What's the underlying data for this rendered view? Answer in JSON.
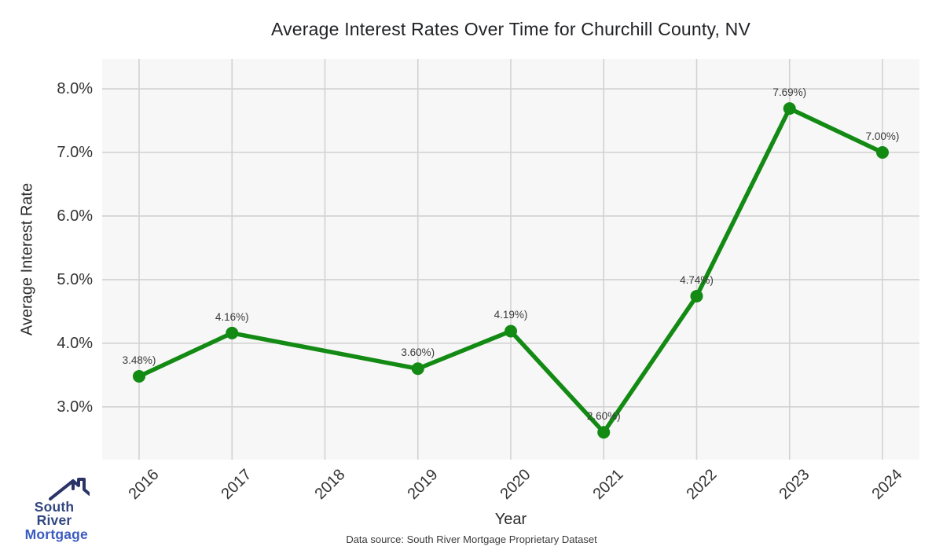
{
  "chart_data": {
    "type": "line",
    "title": "Average Interest Rates Over Time for Churchill County, NV",
    "x": [
      "2016",
      "2017",
      "2018",
      "2019",
      "2020",
      "2021",
      "2022",
      "2023",
      "2024"
    ],
    "series": [
      {
        "name": "Average Interest Rate",
        "values": [
          3.48,
          4.16,
          null,
          3.6,
          4.19,
          2.6,
          4.74,
          7.69,
          7.0
        ]
      }
    ],
    "point_labels": [
      "3.48%)",
      "4.16%)",
      "",
      "3.60%)",
      "4.19%)",
      "2.60%)",
      "4.74%)",
      "7.69%)",
      "7.00%)"
    ],
    "xlabel": "Year",
    "ylabel": "Average Interest Rate",
    "ylim": [
      2.17,
      8.47
    ],
    "yticks": [
      {
        "value": 8.0,
        "label": "8.0%"
      },
      {
        "value": 7.0,
        "label": "7.0%"
      },
      {
        "value": 6.0,
        "label": "6.0%"
      },
      {
        "value": 5.0,
        "label": "5.0%"
      },
      {
        "value": 4.0,
        "label": "4.0%"
      },
      {
        "value": 3.0,
        "label": "3.0%"
      }
    ],
    "grid": true,
    "legend": "none",
    "colors": {
      "line": "#138a13",
      "marker": "#138a13",
      "plot_bg": "#f7f7f7",
      "grid": "#d2d2d2"
    }
  },
  "footer": {
    "data_source": "Data source: South River Mortgage Proprietary Dataset"
  },
  "logo": {
    "text_line1": "South River",
    "text_line2": "Mortgage",
    "colors": {
      "line1": "#32477f",
      "line2": "#3b5cc0",
      "roof": "#2b3466"
    }
  }
}
